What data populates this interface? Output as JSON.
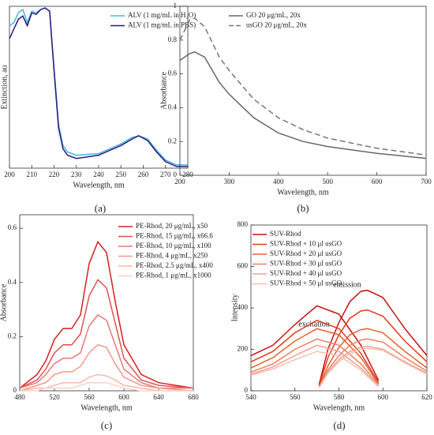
{
  "chart_data": [
    {
      "type": "line",
      "panel_label": "(a)",
      "x_label": "Wavelength, nm",
      "y_label": "Extinction, au",
      "x": [
        200,
        202,
        204,
        206,
        208,
        210,
        212,
        214,
        216,
        218,
        220,
        222,
        224,
        226,
        230,
        240,
        250,
        255,
        258,
        262,
        266,
        270,
        275,
        280
      ],
      "xlim": [
        200,
        280
      ],
      "xticks": [
        200,
        210,
        220,
        230,
        240,
        250,
        260,
        270,
        280
      ],
      "ylim": [
        0,
        1
      ],
      "series": [
        {
          "name": "ALV (1 mg/mL in H₂O)",
          "color": "#40b8e8",
          "style": "solid",
          "values": [
            0.88,
            0.9,
            0.96,
            0.98,
            0.9,
            0.97,
            0.96,
            0.98,
            0.99,
            0.97,
            0.62,
            0.27,
            0.14,
            0.1,
            0.08,
            0.09,
            0.15,
            0.19,
            0.2,
            0.18,
            0.11,
            0.05,
            0.02,
            0.02
          ]
        },
        {
          "name": "ALV (1 mg/mL in PBS)",
          "color": "#2a1a7a",
          "style": "solid",
          "values": [
            0.8,
            0.86,
            0.92,
            0.94,
            0.88,
            0.96,
            0.95,
            0.98,
            0.99,
            0.97,
            0.6,
            0.25,
            0.12,
            0.08,
            0.06,
            0.08,
            0.14,
            0.18,
            0.2,
            0.17,
            0.1,
            0.04,
            0.01,
            0.01
          ]
        }
      ]
    },
    {
      "type": "line",
      "panel_label": "(b)",
      "x_label": "Wavelength, nm",
      "y_label": "Absorbance",
      "x": [
        200,
        220,
        230,
        250,
        280,
        300,
        350,
        400,
        450,
        500,
        600,
        700
      ],
      "xlim": [
        200,
        700
      ],
      "xticks": [
        200,
        300,
        400,
        500,
        600,
        700
      ],
      "ylim": [
        0,
        1
      ],
      "yticks": [
        0,
        0.2,
        0.4,
        0.6,
        0.8,
        1
      ],
      "series": [
        {
          "name": "GO 20 μg/mL, 20x",
          "color": "#666666",
          "style": "solid",
          "values": [
            0.68,
            0.72,
            0.73,
            0.7,
            0.55,
            0.48,
            0.34,
            0.25,
            0.2,
            0.17,
            0.13,
            0.1
          ]
        },
        {
          "name": "usGO 20 μg/mL, 20x",
          "color": "#777777",
          "style": "dashed",
          "values": [
            0.8,
            0.92,
            0.93,
            0.88,
            0.7,
            0.62,
            0.45,
            0.34,
            0.27,
            0.22,
            0.16,
            0.12
          ]
        }
      ]
    },
    {
      "type": "line",
      "panel_label": "(c)",
      "x_label": "Wavelength, nm",
      "y_label": "Absorbance",
      "x": [
        480,
        500,
        510,
        520,
        530,
        540,
        550,
        560,
        570,
        580,
        590,
        600,
        620,
        640,
        680
      ],
      "xlim": [
        480,
        680
      ],
      "xticks": [
        480,
        520,
        560,
        600,
        640,
        680
      ],
      "ylim": [
        0,
        0.65
      ],
      "yticks": [
        0,
        0.2,
        0.4,
        0.6
      ],
      "series": [
        {
          "name": "PE-Rhod, 20 μg/mL, x50",
          "color": "#d42020",
          "style": "solid",
          "values": [
            0.01,
            0.06,
            0.11,
            0.19,
            0.23,
            0.23,
            0.28,
            0.47,
            0.55,
            0.51,
            0.33,
            0.17,
            0.06,
            0.03,
            0.01
          ]
        },
        {
          "name": "PE-Rhod, 15 μg/mL, x66.6",
          "color": "#e05050",
          "style": "solid",
          "values": [
            0.01,
            0.04,
            0.08,
            0.14,
            0.17,
            0.17,
            0.21,
            0.35,
            0.41,
            0.38,
            0.25,
            0.12,
            0.04,
            0.02,
            0.01
          ]
        },
        {
          "name": "PE-Rhod, 10 μg/mL, x100",
          "color": "#e87878",
          "style": "solid",
          "values": [
            0.01,
            0.03,
            0.06,
            0.1,
            0.12,
            0.12,
            0.14,
            0.24,
            0.28,
            0.26,
            0.17,
            0.08,
            0.03,
            0.01,
            0.01
          ]
        },
        {
          "name": "PE-Rhod, 4 μg/mL, x250",
          "color": "#f09a8a",
          "style": "solid",
          "values": [
            0,
            0.02,
            0.03,
            0.06,
            0.07,
            0.07,
            0.09,
            0.14,
            0.17,
            0.16,
            0.1,
            0.05,
            0.02,
            0.01,
            0
          ]
        },
        {
          "name": "PE-Rhod, 2.5 μg/mL, x400",
          "color": "#f5b8a8",
          "style": "solid",
          "values": [
            0,
            0.01,
            0.01,
            0.02,
            0.03,
            0.03,
            0.03,
            0.05,
            0.06,
            0.055,
            0.04,
            0.02,
            0.01,
            0,
            0
          ]
        },
        {
          "name": "PE-Rhod, 1 μg/mL, x1000",
          "color": "#f9d4c8",
          "style": "solid",
          "values": [
            0,
            0,
            0.01,
            0.01,
            0.01,
            0.01,
            0.02,
            0.03,
            0.03,
            0.03,
            0.02,
            0.01,
            0,
            0,
            0
          ]
        }
      ]
    },
    {
      "type": "line",
      "panel_label": "(d)",
      "x_label": "Wavelength, nm",
      "y_label": "Intensity",
      "annotations": [
        "excitation",
        "emission"
      ],
      "x_excitation": [
        540,
        550,
        560,
        570,
        580,
        590,
        598
      ],
      "x_emission": [
        571,
        575,
        580,
        585,
        590,
        593,
        600,
        610,
        620
      ],
      "xlim": [
        540,
        620
      ],
      "xticks": [
        540,
        560,
        580,
        600,
        620
      ],
      "ylim": [
        0,
        800
      ],
      "yticks": [
        0,
        200,
        400,
        600,
        800
      ],
      "series": [
        {
          "name": "SUV-Rhod",
          "color": "#c81010",
          "style": "solid",
          "excitation": [
            170,
            220,
            320,
            410,
            370,
            220,
            50
          ],
          "emission": [
            30,
            200,
            330,
            430,
            480,
            485,
            450,
            300,
            170
          ]
        },
        {
          "name": "SUV-Rhod + 10 μl usGO",
          "color": "#e03a1a",
          "style": "solid",
          "excitation": [
            140,
            190,
            280,
            340,
            300,
            180,
            40
          ],
          "emission": [
            25,
            160,
            270,
            350,
            385,
            390,
            360,
            240,
            140
          ]
        },
        {
          "name": "SUV-Rhod + 20 μl usGO",
          "color": "#e8602a",
          "style": "solid",
          "excitation": [
            110,
            160,
            240,
            300,
            270,
            160,
            35
          ],
          "emission": [
            20,
            120,
            210,
            270,
            295,
            300,
            280,
            190,
            110
          ]
        },
        {
          "name": "SUV-Rhod + 30 μl usGO",
          "color": "#ee8060",
          "style": "solid",
          "excitation": [
            90,
            130,
            200,
            250,
            220,
            130,
            30
          ],
          "emission": [
            20,
            100,
            170,
            220,
            245,
            250,
            235,
            160,
            95
          ]
        },
        {
          "name": "SUV-Rhod + 40 μl usGO",
          "color": "#f2a090",
          "style": "solid",
          "excitation": [
            80,
            115,
            170,
            220,
            190,
            110,
            25
          ],
          "emission": [
            15,
            90,
            150,
            190,
            210,
            215,
            200,
            140,
            85
          ]
        },
        {
          "name": "SUV-Rhod + 50 μl usGO",
          "color": "#f6bfb0",
          "style": "solid",
          "excitation": [
            75,
            105,
            150,
            190,
            170,
            100,
            20
          ],
          "emission": [
            15,
            85,
            140,
            180,
            200,
            205,
            195,
            135,
            80
          ]
        }
      ]
    }
  ]
}
